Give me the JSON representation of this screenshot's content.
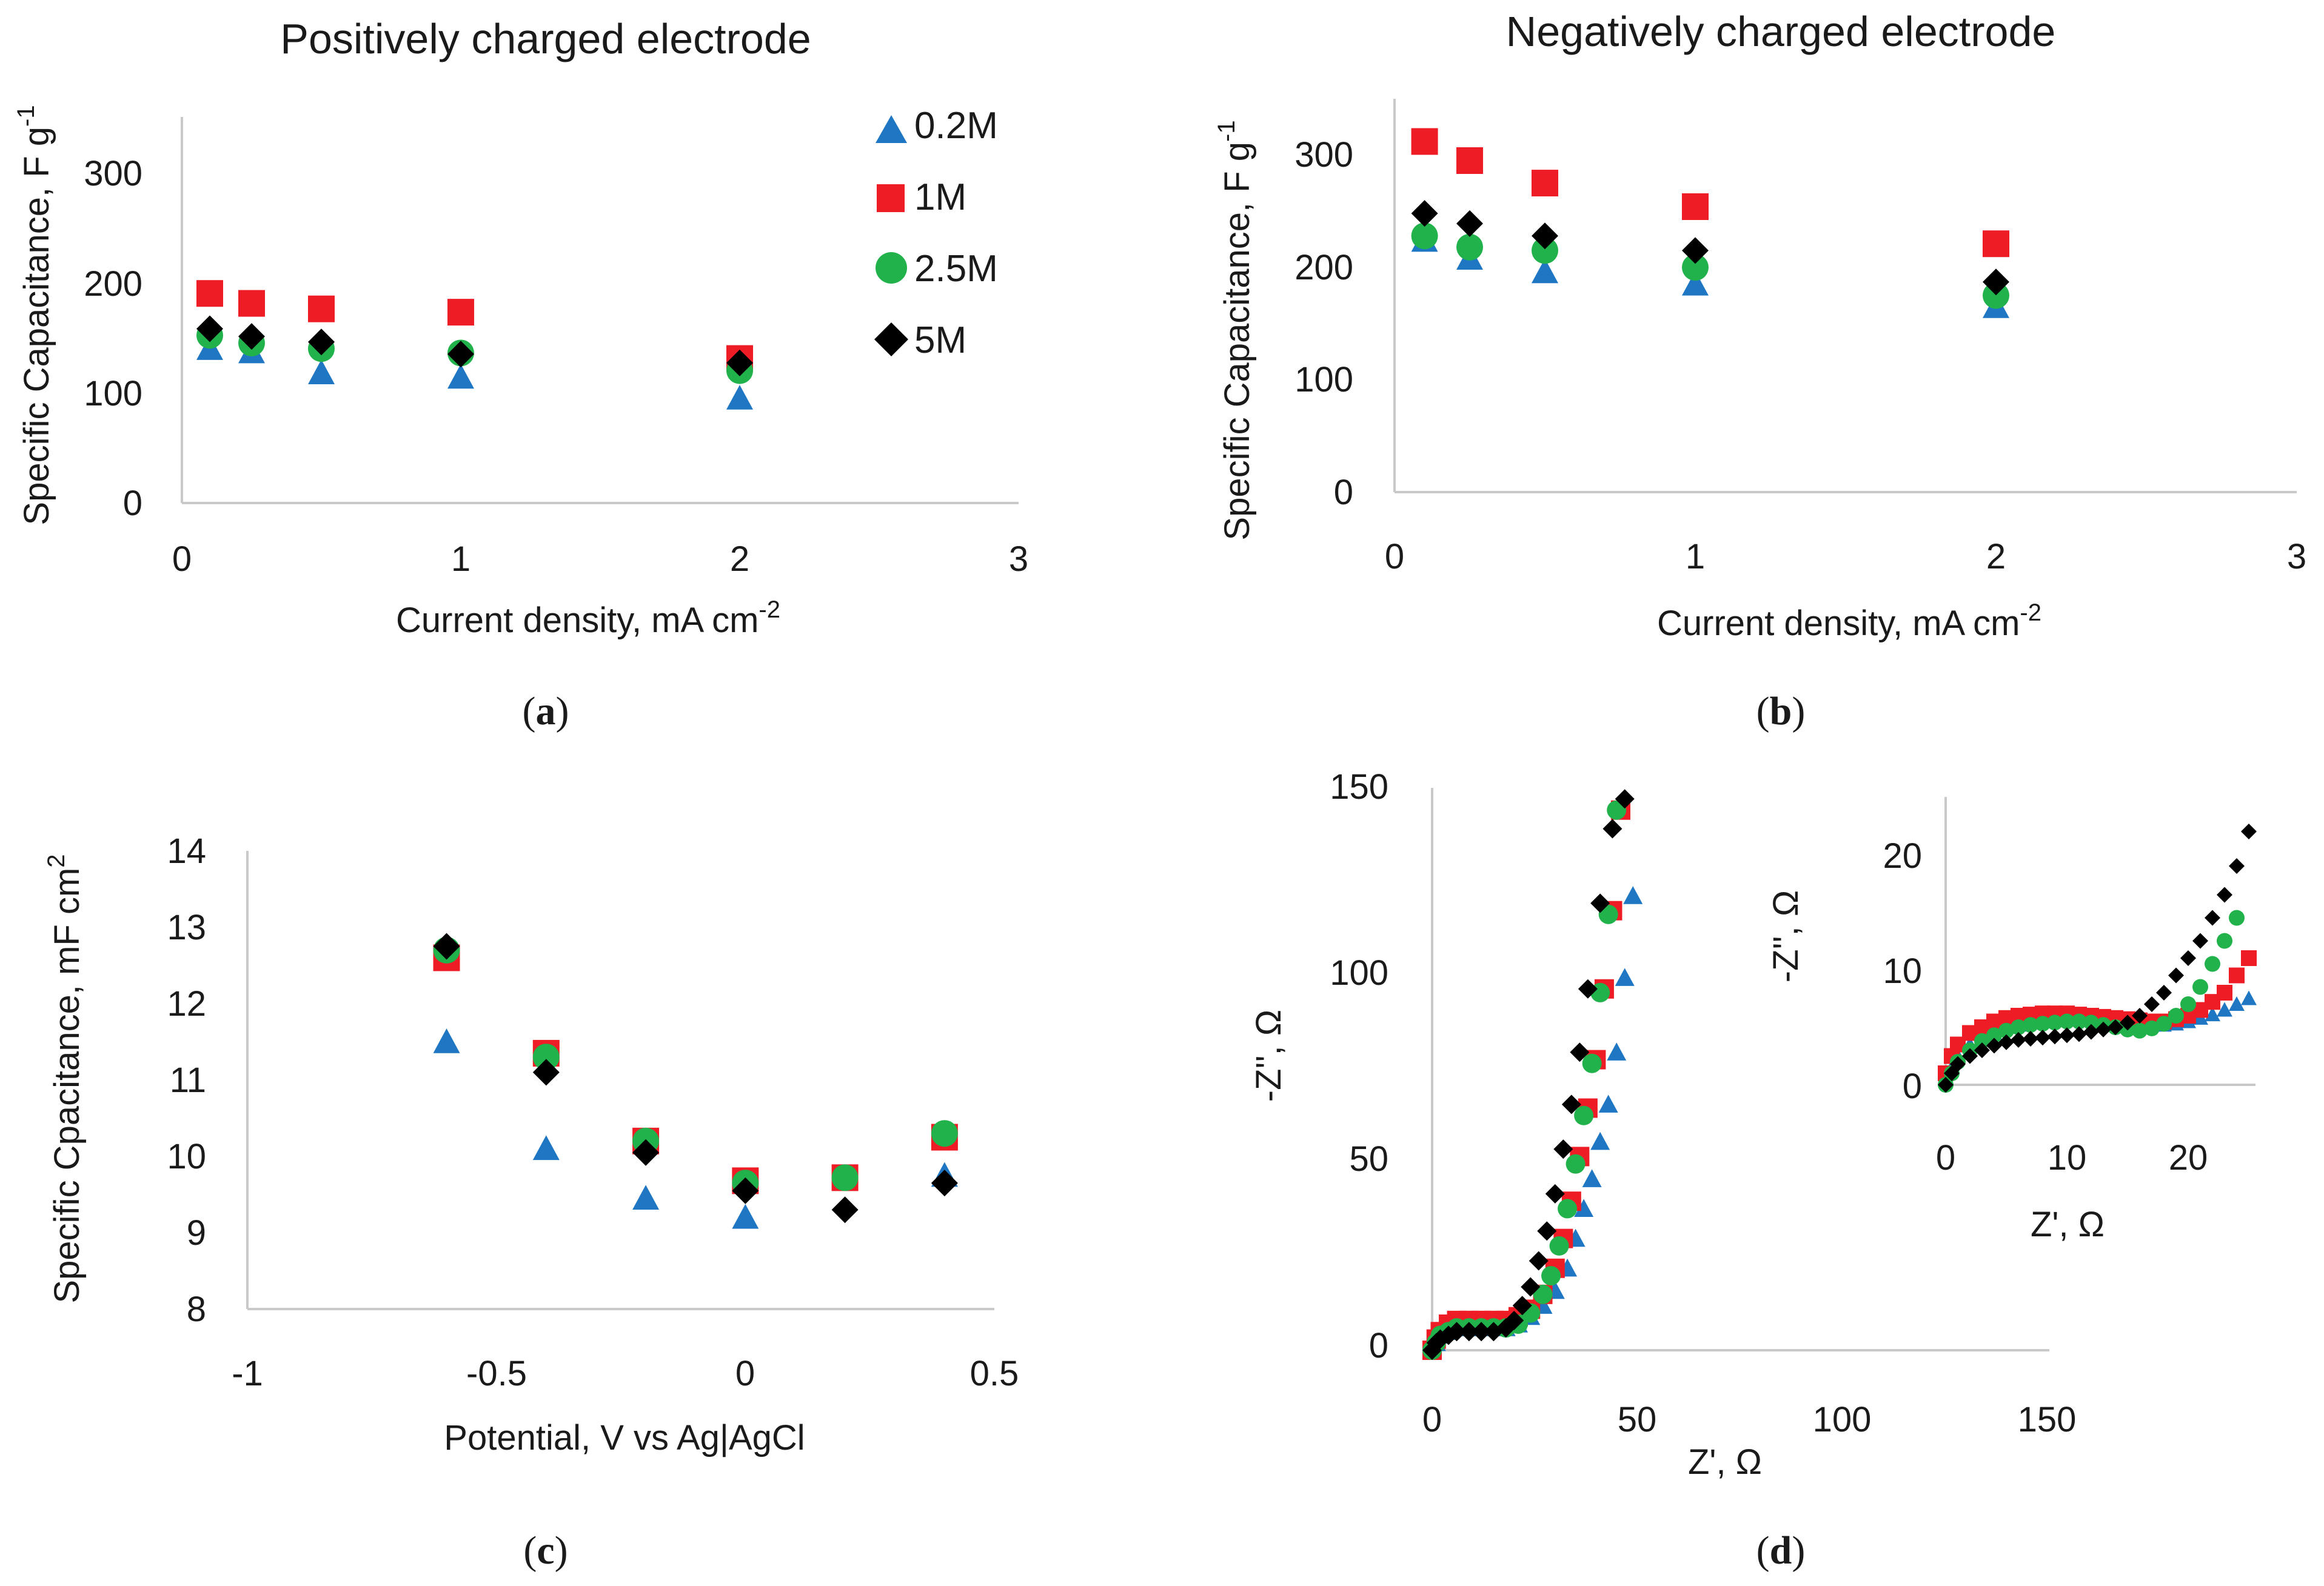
{
  "series_styles": [
    {
      "name": "0.2M",
      "color": "#1f77c4",
      "marker": "triangle"
    },
    {
      "name": "1M",
      "color": "#ee1c25",
      "marker": "square"
    },
    {
      "name": "2.5M",
      "color": "#22b24c",
      "marker": "circle"
    },
    {
      "name": "5M",
      "color": "#000000",
      "marker": "diamond"
    }
  ],
  "chart_data": [
    {
      "id": "a",
      "type": "scatter",
      "caption": "a",
      "title": "Positively charged electrode",
      "xlabel": "Current density,  mA cm",
      "xlabel_sup": "-2",
      "ylabel": "Specific Capacitance, F g",
      "ylabel_sup": "-1",
      "xlim": [
        0,
        3
      ],
      "ylim": [
        0,
        350
      ],
      "xticks": [
        "0",
        "1",
        "2",
        "3"
      ],
      "yticks": [
        "0",
        "100",
        "200",
        "300"
      ],
      "legend": [
        "0.2M",
        "1M",
        "2.5M",
        "5M"
      ],
      "series": [
        {
          "name": "0.2M",
          "x": [
            0.1,
            0.25,
            0.5,
            1,
            2
          ],
          "values": [
            140,
            137,
            118,
            114,
            95
          ]
        },
        {
          "name": "1M",
          "x": [
            0.1,
            0.25,
            0.5,
            1,
            2
          ],
          "values": [
            190,
            181,
            176,
            173,
            131
          ]
        },
        {
          "name": "2.5M",
          "x": [
            0.1,
            0.25,
            0.5,
            1,
            2
          ],
          "values": [
            152,
            145,
            140,
            136,
            120
          ]
        },
        {
          "name": "5M",
          "x": [
            0.1,
            0.25,
            0.5,
            1,
            2
          ],
          "values": [
            158,
            151,
            146,
            135,
            127
          ]
        }
      ]
    },
    {
      "id": "b",
      "type": "scatter",
      "caption": "b",
      "title": "Negatively charged electrode",
      "xlabel": "Current density,  mA cm",
      "xlabel_sup": "-2",
      "ylabel": "Specific Capacitance,  F g",
      "ylabel_sup": "-1",
      "xlim": [
        0,
        3
      ],
      "ylim": [
        0,
        350
      ],
      "xticks": [
        "0",
        "1",
        "2",
        "3"
      ],
      "yticks": [
        "0",
        "100",
        "200",
        "300"
      ],
      "series": [
        {
          "name": "0.2M",
          "x": [
            0.1,
            0.25,
            0.5,
            1,
            2
          ],
          "values": [
            224,
            208,
            196,
            185,
            165
          ]
        },
        {
          "name": "1M",
          "x": [
            0.1,
            0.25,
            0.5,
            1,
            2
          ],
          "values": [
            312,
            295,
            275,
            254,
            221
          ]
        },
        {
          "name": "2.5M",
          "x": [
            0.1,
            0.25,
            0.5,
            1,
            2
          ],
          "values": [
            228,
            218,
            215,
            200,
            175
          ]
        },
        {
          "name": "5M",
          "x": [
            0.1,
            0.25,
            0.5,
            1,
            2
          ],
          "values": [
            248,
            239,
            228,
            215,
            187
          ]
        }
      ]
    },
    {
      "id": "c",
      "type": "scatter",
      "caption": "c",
      "title": "",
      "xlabel": "Potential, V vs Ag|AgCl",
      "ylabel": "Specific Cpacitance,  mF cm",
      "ylabel_sup": "2",
      "xlim": [
        -1,
        0.5
      ],
      "ylim": [
        8,
        14
      ],
      "xticks": [
        "-1",
        "-0.5",
        "0",
        "0.5"
      ],
      "yticks": [
        "8",
        "9",
        "10",
        "11",
        "12",
        "13",
        "14"
      ],
      "series": [
        {
          "name": "0.2M",
          "x": [
            -0.6,
            -0.4,
            -0.2,
            0,
            0.4
          ],
          "values": [
            11.5,
            10.1,
            9.45,
            9.2,
            9.75
          ]
        },
        {
          "name": "1M",
          "x": [
            -0.6,
            -0.4,
            -0.2,
            0,
            0.2,
            0.4
          ],
          "values": [
            12.6,
            11.35,
            10.2,
            9.68,
            9.72,
            10.25
          ]
        },
        {
          "name": "2.5M",
          "x": [
            -0.6,
            -0.4,
            -0.2,
            0,
            0.2,
            0.4
          ],
          "values": [
            12.7,
            11.3,
            10.2,
            9.65,
            9.72,
            10.3
          ]
        },
        {
          "name": "5M",
          "x": [
            -0.6,
            -0.4,
            -0.2,
            0,
            0.2,
            0.4
          ],
          "values": [
            12.75,
            11.1,
            10.05,
            9.55,
            9.3,
            9.65
          ]
        }
      ]
    },
    {
      "id": "d",
      "type": "scatter",
      "caption": "d",
      "title": "",
      "xlabel": "Z', Ω",
      "ylabel": "-Z'', Ω",
      "xlim": [
        0,
        150
      ],
      "ylim": [
        0,
        150
      ],
      "xticks": [
        "0",
        "50",
        "100",
        "150"
      ],
      "yticks": [
        "0",
        "50",
        "100",
        "150"
      ],
      "series": [
        {
          "name": "0.2M",
          "x": [
            0,
            1,
            2,
            4,
            6,
            9,
            12,
            15,
            18,
            21,
            24,
            27,
            30,
            33,
            35,
            37,
            39,
            41,
            43,
            45,
            47,
            49
          ],
          "values": [
            0,
            2,
            4,
            5,
            6,
            6,
            6,
            6,
            6,
            7,
            9,
            12,
            16,
            22,
            30,
            38,
            46,
            56,
            66,
            80,
            100,
            122
          ]
        },
        {
          "name": "1M",
          "x": [
            0,
            1,
            2,
            4,
            6,
            9,
            12,
            15,
            18,
            21,
            24,
            27,
            30,
            32,
            34,
            36,
            38,
            40,
            42,
            44,
            46
          ],
          "values": [
            0,
            3,
            5,
            7,
            8,
            8,
            8,
            8,
            8,
            9,
            11,
            15,
            22,
            30,
            40,
            52,
            65,
            78,
            97,
            118,
            145
          ]
        },
        {
          "name": "2.5M",
          "x": [
            0,
            1,
            2,
            4,
            6,
            9,
            12,
            15,
            18,
            21,
            24,
            27,
            29,
            31,
            33,
            35,
            37,
            39,
            41,
            43,
            45
          ],
          "values": [
            0,
            2,
            4,
            5,
            6,
            6,
            6,
            6,
            6,
            7,
            10,
            15,
            20,
            28,
            38,
            50,
            63,
            77,
            96,
            117,
            145
          ]
        },
        {
          "name": "5M",
          "x": [
            0,
            1,
            2,
            4,
            6,
            9,
            12,
            15,
            18,
            20,
            22,
            24,
            26,
            28,
            30,
            32,
            34,
            36,
            38,
            41,
            44,
            47
          ],
          "values": [
            0,
            2,
            3,
            4,
            5,
            5,
            5,
            5,
            6,
            8,
            12,
            17,
            24,
            32,
            42,
            54,
            66,
            80,
            97,
            120,
            140,
            148
          ]
        }
      ]
    },
    {
      "id": "d-inset",
      "type": "scatter",
      "title": "",
      "xlabel": "Z', Ω",
      "ylabel": "-Z'', Ω",
      "xlim": [
        0,
        25
      ],
      "ylim": [
        0,
        25
      ],
      "xticks": [
        "0",
        "10",
        "20"
      ],
      "yticks": [
        "0",
        "10",
        "20"
      ],
      "series": [
        {
          "name": "0.2M",
          "x": [
            0,
            0.5,
            1,
            2,
            3,
            4,
            5,
            6,
            7,
            8,
            9,
            10,
            11,
            12,
            13,
            14,
            15,
            16,
            17,
            18,
            19,
            20,
            21,
            22,
            23,
            24,
            25
          ],
          "values": [
            0.5,
            1.5,
            2.5,
            3.5,
            4,
            4.5,
            5,
            5.2,
            5.4,
            5.5,
            5.6,
            5.7,
            5.7,
            5.7,
            5.6,
            5.5,
            5.4,
            5.3,
            5.2,
            5.2,
            5.3,
            5.5,
            5.8,
            6.1,
            6.5,
            7,
            7.5
          ]
        },
        {
          "name": "1M",
          "x": [
            0,
            0.5,
            1,
            2,
            3,
            4,
            5,
            6,
            7,
            8,
            9,
            10,
            11,
            12,
            13,
            14,
            15,
            16,
            17,
            18,
            19,
            20,
            21,
            22,
            23,
            24,
            25
          ],
          "values": [
            1,
            2.5,
            3.5,
            4.5,
            5,
            5.5,
            5.8,
            6,
            6.1,
            6.2,
            6.2,
            6.2,
            6.1,
            6,
            5.9,
            5.8,
            5.7,
            5.6,
            5.5,
            5.5,
            5.7,
            6,
            6.5,
            7.2,
            8,
            9.5,
            11
          ]
        },
        {
          "name": "2.5M",
          "x": [
            0,
            0.5,
            1,
            2,
            3,
            4,
            5,
            6,
            7,
            8,
            9,
            10,
            11,
            12,
            13,
            14,
            15,
            16,
            17,
            18,
            19,
            20,
            21,
            22,
            23,
            24
          ],
          "values": [
            0,
            1,
            2,
            3,
            3.8,
            4.3,
            4.7,
            5,
            5.2,
            5.3,
            5.4,
            5.5,
            5.5,
            5.4,
            5.2,
            5,
            4.8,
            4.7,
            4.9,
            5.3,
            6,
            7,
            8.5,
            10.5,
            12.5,
            14.5
          ]
        },
        {
          "name": "5M",
          "x": [
            0,
            0.5,
            1,
            2,
            3,
            4,
            5,
            6,
            7,
            8,
            9,
            10,
            11,
            12,
            13,
            14,
            15,
            16,
            17,
            18,
            19,
            20,
            21,
            22,
            23,
            24,
            25
          ],
          "values": [
            0,
            1,
            1.8,
            2.5,
            3,
            3.4,
            3.7,
            3.9,
            4,
            4.1,
            4.2,
            4.3,
            4.4,
            4.6,
            4.8,
            5,
            5.4,
            6,
            7,
            8,
            9.5,
            11,
            12.5,
            14.5,
            16.5,
            19,
            22
          ]
        }
      ]
    }
  ]
}
